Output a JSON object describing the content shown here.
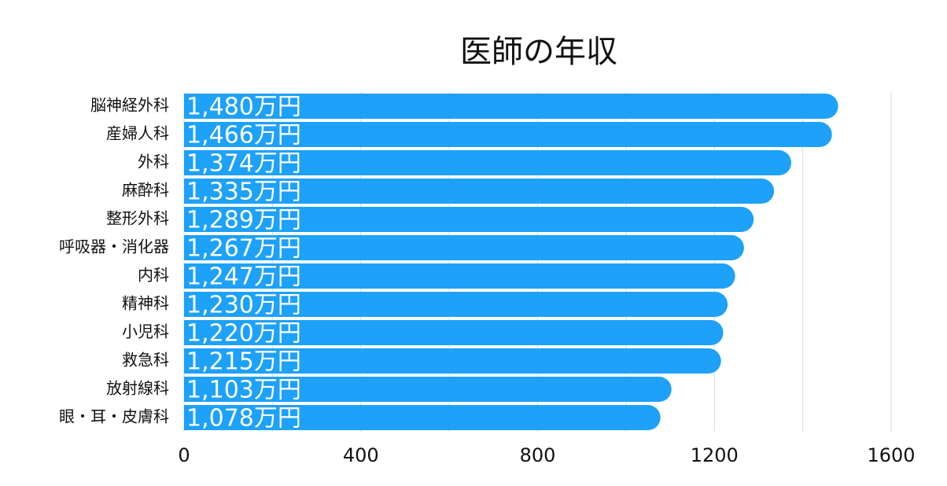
{
  "chart_data": {
    "type": "bar",
    "orientation": "horizontal",
    "title": "医師の年収",
    "categories": [
      "脳神経外科",
      "産婦人科",
      "外科",
      "麻酔科",
      "整形外科",
      "呼吸器・消化器",
      "内科",
      "精神科",
      "小児科",
      "救急科",
      "放射線科",
      "眼・耳・皮膚科"
    ],
    "values": [
      1480,
      1466,
      1374,
      1335,
      1289,
      1267,
      1247,
      1230,
      1220,
      1215,
      1103,
      1078
    ],
    "value_labels": [
      "1,480万円",
      "1,466万円",
      "1,374万円",
      "1,335万円",
      "1,289万円",
      "1,267万円",
      "1,247万円",
      "1,230万円",
      "1,220万円",
      "1,215万円",
      "1,103万円",
      "1,078万円"
    ],
    "color": "#1da1f9",
    "label_color": "#ffffff",
    "xlim": [
      0,
      1600
    ],
    "xticks": [
      0,
      400,
      800,
      1200,
      1600
    ],
    "minor_grid": [
      200,
      600,
      1000,
      1400
    ],
    "grid": true
  }
}
